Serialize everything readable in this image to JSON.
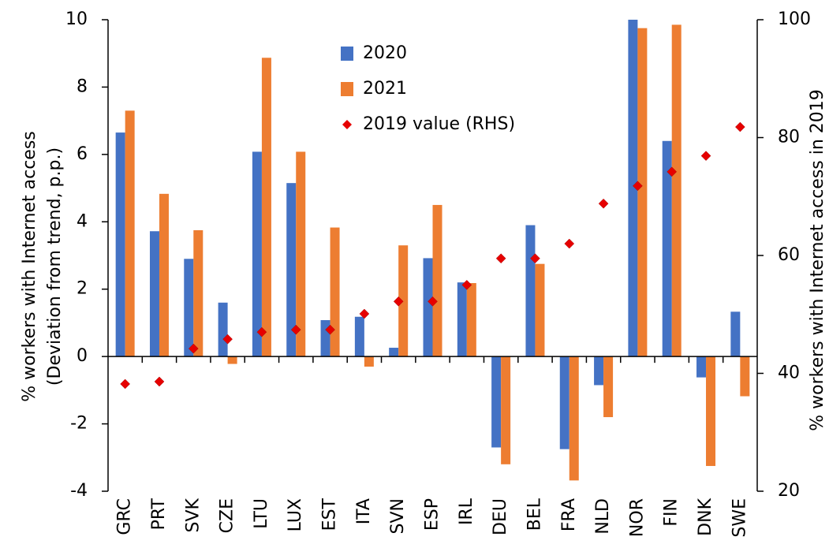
{
  "chart_data": {
    "type": "bar",
    "y_label": [
      "% workers with Internet access",
      "(Deviation from trend, p.p.)"
    ],
    "y2_label": "% workers with Internet access in 2019",
    "categories": [
      "GRC",
      "PRT",
      "SVK",
      "CZE",
      "LTU",
      "LUX",
      "EST",
      "ITA",
      "SVN",
      "ESP",
      "IRL",
      "DEU",
      "BEL",
      "FRA",
      "NLD",
      "NOR",
      "FIN",
      "DNK",
      "SWE"
    ],
    "series": [
      {
        "name": "2020",
        "color": "#4472c4",
        "values": [
          6.65,
          3.72,
          2.9,
          1.6,
          6.08,
          5.15,
          1.08,
          1.18,
          0.26,
          2.92,
          2.2,
          -2.7,
          3.9,
          -2.75,
          -0.85,
          10,
          6.4,
          -0.62,
          1.33
        ]
      },
      {
        "name": "2021",
        "color": "#ed7d31",
        "values": [
          7.3,
          4.83,
          3.75,
          -0.22,
          8.87,
          6.08,
          3.83,
          -0.3,
          3.3,
          4.5,
          2.18,
          -3.2,
          2.75,
          -3.68,
          -1.8,
          9.75,
          9.85,
          -3.25,
          -1.18
        ]
      },
      {
        "name": "2019 value (RHS)",
        "color": "#e60000",
        "axis": "y2",
        "marker": "diamond",
        "values": [
          38.2,
          38.6,
          44.2,
          45.8,
          47.0,
          47.4,
          47.4,
          50.1,
          52.2,
          52.2,
          55.0,
          59.5,
          59.5,
          62.0,
          68.8,
          71.8,
          74.2,
          76.9,
          81.8
        ]
      }
    ],
    "ylim": [
      -4,
      10
    ],
    "yticks": [
      -4,
      -2,
      0,
      2,
      4,
      6,
      8,
      10
    ],
    "y2lim": [
      20,
      100
    ],
    "y2ticks": [
      20,
      40,
      60,
      80,
      100
    ]
  }
}
